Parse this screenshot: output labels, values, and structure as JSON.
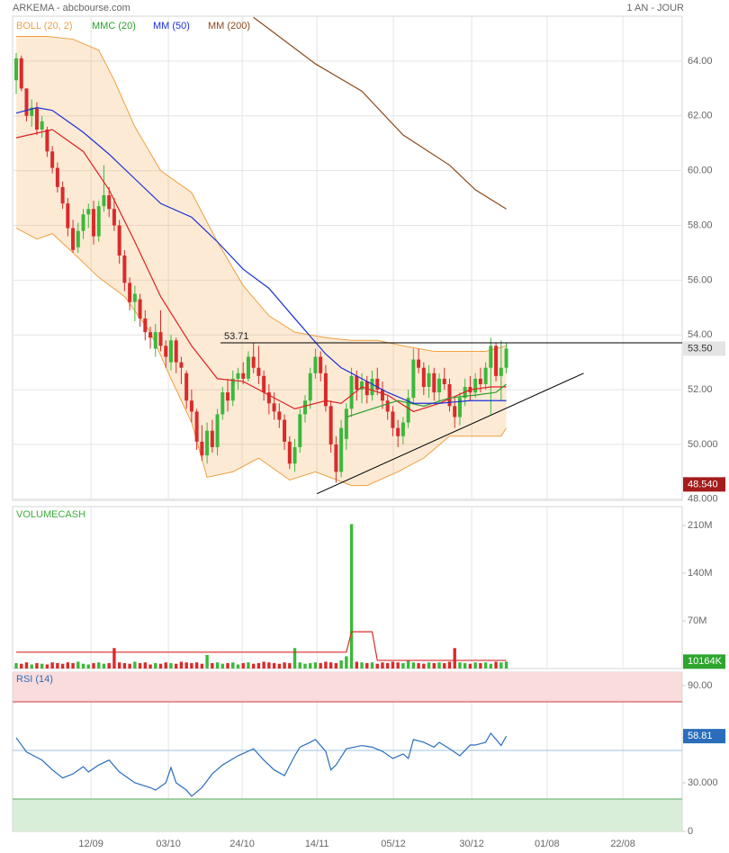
{
  "header": {
    "title": "ARKEMA - abcbourse.com",
    "period": "1 AN - JOUR"
  },
  "chart_data": [
    {
      "type": "candlestick",
      "up_color": "#3cb83c",
      "down_color": "#d92b2b",
      "ylim": [
        47.96,
        65.64
      ],
      "yticks": [
        {
          "value": 48,
          "label": "48.000"
        },
        {
          "value": 50,
          "label": "50.000"
        },
        {
          "value": 52,
          "label": "52.00"
        },
        {
          "value": 54,
          "label": "54.00"
        },
        {
          "value": 56,
          "label": "56.00"
        },
        {
          "value": 58,
          "label": "58.00"
        },
        {
          "value": 60,
          "label": "60.00"
        },
        {
          "value": 62,
          "label": "62.00"
        },
        {
          "value": 64,
          "label": "64.00"
        }
      ],
      "candles": [
        [
          63.3,
          64.3,
          62.8,
          64.1
        ],
        [
          64.1,
          64.2,
          62.9,
          63.0
        ],
        [
          63.0,
          63.0,
          61.8,
          62.0
        ],
        [
          62.0,
          62.6,
          61.6,
          62.3
        ],
        [
          62.3,
          62.5,
          61.3,
          61.5
        ],
        [
          61.5,
          62.0,
          61.2,
          61.8
        ],
        [
          61.5,
          61.6,
          60.5,
          60.7
        ],
        [
          60.7,
          60.9,
          59.9,
          60.1
        ],
        [
          60.1,
          60.3,
          59.2,
          59.4
        ],
        [
          59.4,
          59.6,
          58.6,
          58.8
        ],
        [
          58.8,
          59.0,
          57.6,
          57.9
        ],
        [
          57.9,
          58.2,
          57.0,
          57.1
        ],
        [
          57.2,
          58.1,
          57.0,
          57.8
        ],
        [
          57.8,
          58.6,
          57.5,
          58.4
        ],
        [
          58.4,
          58.8,
          57.9,
          58.6
        ],
        [
          58.6,
          58.9,
          57.3,
          57.6
        ],
        [
          57.6,
          58.9,
          57.4,
          58.7
        ],
        [
          58.7,
          60.2,
          58.5,
          59.1
        ],
        [
          59.1,
          59.4,
          58.3,
          58.6
        ],
        [
          58.6,
          59.0,
          57.8,
          58.0
        ],
        [
          58.0,
          58.2,
          56.6,
          56.9
        ],
        [
          56.9,
          57.1,
          55.6,
          55.9
        ],
        [
          55.9,
          56.1,
          54.9,
          55.2
        ],
        [
          55.2,
          55.8,
          54.5,
          55.5
        ],
        [
          55.3,
          55.5,
          54.3,
          54.6
        ],
        [
          54.6,
          54.9,
          53.8,
          54.1
        ],
        [
          54.1,
          54.3,
          53.5,
          53.9
        ],
        [
          53.5,
          54.4,
          53.2,
          54.1
        ],
        [
          54.1,
          54.9,
          53.4,
          53.6
        ],
        [
          53.6,
          53.8,
          52.8,
          53.2
        ],
        [
          53.0,
          54.0,
          52.7,
          53.8
        ],
        [
          53.8,
          53.9,
          52.6,
          53.0
        ],
        [
          53.0,
          53.2,
          52.2,
          52.8
        ],
        [
          52.6,
          52.7,
          51.3,
          51.6
        ],
        [
          51.6,
          52.0,
          50.8,
          51.2
        ],
        [
          51.2,
          51.3,
          49.8,
          50.1
        ],
        [
          50.1,
          50.7,
          49.4,
          49.6
        ],
        [
          49.6,
          50.8,
          49.3,
          50.5
        ],
        [
          50.5,
          50.9,
          49.7,
          49.9
        ],
        [
          49.9,
          51.3,
          49.6,
          51.1
        ],
        [
          51.1,
          52.1,
          50.9,
          51.9
        ],
        [
          51.9,
          52.4,
          51.2,
          51.6
        ],
        [
          51.6,
          52.7,
          51.4,
          52.4
        ],
        [
          52.4,
          52.8,
          52.0,
          52.6
        ],
        [
          52.6,
          53.0,
          52.2,
          52.4
        ],
        [
          52.4,
          53.4,
          52.3,
          53.2
        ],
        [
          53.2,
          53.7,
          52.6,
          52.8
        ],
        [
          52.8,
          53.6,
          52.2,
          52.5
        ],
        [
          52.5,
          52.7,
          51.6,
          51.9
        ],
        [
          51.9,
          52.2,
          51.1,
          51.5
        ],
        [
          51.5,
          51.9,
          50.9,
          51.2
        ],
        [
          51.2,
          51.5,
          50.6,
          50.9
        ],
        [
          50.9,
          51.1,
          49.8,
          50.1
        ],
        [
          50.1,
          50.3,
          49.1,
          49.3
        ],
        [
          49.3,
          50.2,
          49.0,
          49.9
        ],
        [
          49.9,
          51.3,
          49.7,
          51.1
        ],
        [
          51.1,
          51.8,
          50.8,
          51.6
        ],
        [
          51.6,
          52.8,
          51.3,
          52.6
        ],
        [
          52.6,
          53.5,
          52.4,
          53.2
        ],
        [
          53.2,
          53.4,
          52.3,
          52.6
        ],
        [
          52.6,
          52.9,
          51.2,
          51.4
        ],
        [
          51.4,
          51.6,
          49.7,
          50.0
        ],
        [
          50.0,
          50.3,
          48.6,
          49.0
        ],
        [
          49.0,
          50.9,
          48.8,
          50.6
        ],
        [
          50.2,
          51.5,
          49.8,
          51.3
        ],
        [
          51.3,
          52.8,
          51.0,
          52.5
        ],
        [
          52.5,
          52.7,
          51.6,
          52.0
        ],
        [
          52.0,
          52.6,
          51.5,
          52.3
        ],
        [
          52.3,
          52.5,
          51.5,
          51.8
        ],
        [
          51.8,
          52.7,
          51.6,
          52.4
        ],
        [
          52.4,
          52.8,
          51.8,
          52.0
        ],
        [
          52.0,
          52.3,
          51.3,
          51.6
        ],
        [
          51.6,
          51.8,
          50.9,
          51.2
        ],
        [
          51.2,
          51.4,
          50.3,
          50.6
        ],
        [
          50.6,
          50.9,
          49.9,
          50.3
        ],
        [
          50.3,
          51.0,
          50.0,
          50.8
        ],
        [
          50.8,
          52.0,
          50.6,
          51.7
        ],
        [
          51.7,
          53.5,
          51.5,
          53.1
        ],
        [
          53.1,
          53.5,
          52.6,
          52.8
        ],
        [
          52.8,
          53.0,
          51.8,
          52.1
        ],
        [
          52.1,
          52.9,
          51.7,
          52.6
        ],
        [
          52.6,
          52.8,
          51.6,
          51.9
        ],
        [
          51.9,
          52.6,
          51.5,
          52.4
        ],
        [
          52.4,
          52.8,
          52.0,
          52.2
        ],
        [
          52.2,
          52.4,
          51.2,
          51.4
        ],
        [
          51.4,
          51.7,
          50.6,
          51.0
        ],
        [
          51.0,
          51.9,
          50.7,
          51.7
        ],
        [
          51.7,
          52.4,
          51.4,
          52.1
        ],
        [
          52.1,
          52.5,
          51.6,
          51.9
        ],
        [
          51.9,
          52.6,
          51.7,
          52.4
        ],
        [
          52.4,
          52.8,
          51.9,
          52.2
        ],
        [
          52.2,
          53.0,
          52.0,
          52.8
        ],
        [
          52.8,
          53.9,
          51.1,
          53.6
        ],
        [
          53.6,
          53.7,
          52.3,
          52.5
        ],
        [
          52.5,
          53.8,
          51.6,
          52.8
        ],
        [
          52.8,
          53.7,
          52.6,
          53.5
        ]
      ],
      "series": [
        {
          "name": "BOLL (20, 2)",
          "color": "#f0a040",
          "middle_color": "#e02020",
          "upper": {
            "x": [
              0,
              6,
              11,
              16,
              19,
              23,
              28,
              34,
              39,
              44,
              49,
              54,
              60,
              65,
              70,
              75,
              81,
              86,
              91,
              95
            ],
            "values": [
              64.9,
              64.9,
              64.8,
              64.4,
              63.3,
              61.6,
              60.0,
              59.2,
              57.4,
              55.8,
              54.7,
              54.1,
              53.9,
              53.8,
              53.8,
              53.6,
              53.4,
              53.4,
              53.4,
              53.6
            ]
          },
          "lower": {
            "x": [
              0,
              4,
              7,
              11,
              16,
              21,
              26,
              30,
              34,
              37,
              42,
              47,
              53,
              58,
              65,
              68,
              74,
              79,
              84,
              89,
              94,
              95
            ],
            "values": [
              57.9,
              57.5,
              57.7,
              57.0,
              56.1,
              55.4,
              54.1,
              52.4,
              50.8,
              48.8,
              49.0,
              49.5,
              48.7,
              49.0,
              48.5,
              48.5,
              49.0,
              49.5,
              50.3,
              50.3,
              50.3,
              50.6
            ]
          },
          "middle": {
            "x": [
              0,
              7,
              13,
              18,
              23,
              28,
              34,
              39,
              44,
              49,
              54,
              60,
              63,
              67,
              72,
              77,
              82,
              88,
              92,
              95
            ],
            "values": [
              61.2,
              61.5,
              60.7,
              59.3,
              57.4,
              55.4,
              53.6,
              52.4,
              52.3,
              51.8,
              51.3,
              51.6,
              51.5,
              52.1,
              51.8,
              51.2,
              51.5,
              52.0,
              52.1,
              52.1
            ]
          }
        },
        {
          "name": "MMC (20)",
          "color": "#2e9e2e",
          "x": [
            64,
            69,
            74,
            79,
            84,
            89,
            93,
            95
          ],
          "values": [
            51.0,
            51.3,
            51.6,
            51.4,
            51.7,
            51.8,
            51.9,
            52.2
          ]
        },
        {
          "name": "MM (50)",
          "color": "#1c2fd6",
          "x": [
            0,
            4,
            7,
            13,
            18,
            23,
            28,
            34,
            39,
            44,
            49,
            54,
            60,
            63,
            67,
            72,
            77,
            82,
            88,
            95
          ],
          "values": [
            62.1,
            62.3,
            62.2,
            61.4,
            60.6,
            59.7,
            58.8,
            58.3,
            57.4,
            56.4,
            55.7,
            54.6,
            53.3,
            52.8,
            52.4,
            51.9,
            51.5,
            51.5,
            51.6,
            51.6
          ]
        },
        {
          "name": "MM (200)",
          "color": "#8b4a1c",
          "x": [
            46,
            58,
            67,
            75,
            84,
            89,
            95
          ],
          "values": [
            65.6,
            63.9,
            62.9,
            61.3,
            60.2,
            59.3,
            58.6
          ]
        }
      ],
      "level": 53.71,
      "trendline": {
        "x": [
          58.3,
          110
        ],
        "values": [
          48.2,
          52.6
        ]
      },
      "last_badge": {
        "value": 53.5,
        "label": "53.50",
        "color": "#e4e4e4",
        "text_color": "#333"
      },
      "low_badge": {
        "value": 48.54,
        "label": "48.540",
        "color": "#a51c1c"
      }
    },
    {
      "type": "bar",
      "title": "VOLUMECASH",
      "ylim": [
        0,
        237.7
      ],
      "yticks": [
        {
          "value": 70,
          "label": "70M"
        },
        {
          "value": 140,
          "label": "140M"
        },
        {
          "value": 210,
          "label": "210M"
        }
      ],
      "values": [
        8,
        7,
        9,
        6,
        8,
        7,
        6,
        9,
        8,
        7,
        9,
        8,
        10,
        7,
        6,
        8,
        9,
        7,
        8,
        30,
        9,
        8,
        7,
        10,
        8,
        9,
        6,
        8,
        7,
        9,
        8,
        7,
        10,
        9,
        8,
        9,
        7,
        20,
        8,
        9,
        7,
        8,
        9,
        6,
        8,
        9,
        7,
        8,
        10,
        9,
        8,
        7,
        9,
        8,
        30,
        9,
        7,
        8,
        9,
        8,
        10,
        9,
        8,
        12,
        18,
        212,
        10,
        9,
        8,
        9,
        7,
        9,
        8,
        10,
        9,
        8,
        12,
        9,
        8,
        7,
        9,
        8,
        9,
        8,
        10,
        30,
        9,
        8,
        7,
        9,
        8,
        9,
        7,
        10,
        9,
        10.164
      ],
      "average": {
        "color": "#d92b2b",
        "x": [
          0,
          40,
          64,
          65,
          69,
          70,
          95
        ],
        "values": [
          24,
          24,
          24,
          54,
          54,
          12,
          12
        ]
      },
      "last_badge": {
        "value": 10.164,
        "label": "10164K",
        "color": "#2ea52e"
      }
    },
    {
      "type": "line",
      "title": "RSI (14)",
      "color": "#2a6ebb",
      "ylim": [
        0,
        98.3
      ],
      "yticks": [
        0,
        {
          "value": 30,
          "label": "30.000"
        },
        {
          "value": 90,
          "label": "90.00"
        }
      ],
      "overbought": 80,
      "oversold": 20,
      "midline": 50,
      "xlim": [
        -0.7,
        129.1
      ],
      "xticks": [
        {
          "value": 14.5,
          "label": "12/09"
        },
        {
          "value": 29.5,
          "label": "03/10"
        },
        {
          "value": 43.8,
          "label": "24/10"
        },
        {
          "value": 58.3,
          "label": "14/11"
        },
        {
          "value": 73.1,
          "label": "05/12"
        },
        {
          "value": 88.3,
          "label": "30/12"
        },
        {
          "value": 102.9,
          "label": "01/08"
        },
        {
          "value": 117.6,
          "label": "22/08"
        }
      ],
      "x": [
        0,
        2,
        5,
        7,
        9,
        11,
        13,
        14,
        16,
        18,
        20,
        23,
        26,
        27,
        29,
        30,
        31,
        33,
        34,
        36,
        38,
        40,
        43,
        46,
        48,
        50,
        52,
        54,
        55,
        57,
        58,
        60,
        61,
        62,
        64,
        67,
        69,
        71,
        73,
        75,
        76,
        77,
        79,
        81,
        82,
        84,
        86,
        88,
        89,
        91,
        92,
        94,
        95
      ],
      "values": [
        57.8,
        49,
        44,
        38,
        33,
        35.5,
        40,
        36.7,
        41,
        44,
        36.7,
        30,
        27,
        25.5,
        30,
        39.4,
        30,
        25.5,
        21.7,
        27,
        35.5,
        41,
        46.7,
        51,
        44,
        38,
        34.4,
        46.7,
        52,
        55,
        56.7,
        49.4,
        38,
        41,
        51,
        53,
        52,
        49.4,
        45,
        47.8,
        45,
        56.7,
        55,
        52,
        55,
        51,
        46.7,
        53.3,
        53.3,
        55,
        60.6,
        53,
        58.81
      ],
      "last_badge": {
        "value": 58.81,
        "label": "58.81",
        "color": "#2a6ebb"
      }
    }
  ]
}
